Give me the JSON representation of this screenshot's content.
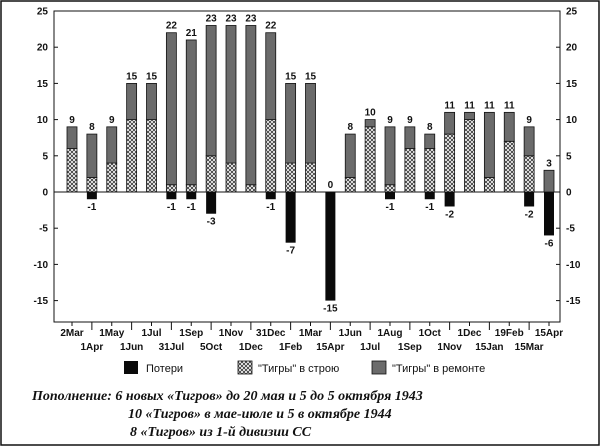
{
  "chart_data": {
    "type": "bar",
    "categories": [
      "2Mar",
      "1Apr",
      "1May",
      "1Jun",
      "1Jul",
      "31Jul",
      "1Sep",
      "5Oct",
      "1Nov",
      "1Dec",
      "31Dec",
      "1Feb",
      "1Mar",
      "15Apr",
      "1Jun",
      "1Jul",
      "1Aug",
      "1Sep",
      "1Oct",
      "1Nov",
      "1Dec",
      "15Jan",
      "19Feb",
      "15Mar",
      "15Apr"
    ],
    "x_tick_labels_top_row": [
      "2Mar",
      "1May",
      "1Jul",
      "1Sep",
      "1Nov",
      "31Dec",
      "1Mar",
      "1Jun",
      "1Aug",
      "1Oct",
      "1Dec",
      "19Feb",
      "15Apr"
    ],
    "x_tick_labels_bottom_row": [
      "1Apr",
      "1Jun",
      "31Jul",
      "5Oct",
      "1Dec",
      "1Feb",
      "15Apr",
      "1Jul",
      "1Sep",
      "1Nov",
      "15Jan",
      "15Mar"
    ],
    "series": [
      {
        "name": "Потери",
        "values": [
          0,
          -1,
          0,
          0,
          0,
          -1,
          -1,
          -3,
          0,
          0,
          -1,
          -7,
          0,
          -15,
          0,
          0,
          -1,
          0,
          -1,
          -2,
          0,
          0,
          0,
          -2,
          -6
        ]
      },
      {
        "name": "\"Тигры\" в строю",
        "values": [
          6,
          2,
          4,
          10,
          10,
          1,
          1,
          5,
          4,
          1,
          10,
          4,
          4,
          0,
          2,
          9,
          1,
          6,
          6,
          8,
          10,
          2,
          7,
          5,
          0
        ]
      },
      {
        "name": "\"Тигры\" в ремонте",
        "values": [
          3,
          6,
          5,
          5,
          5,
          21,
          20,
          18,
          19,
          22,
          12,
          11,
          11,
          0,
          6,
          1,
          8,
          3,
          2,
          3,
          1,
          9,
          4,
          4,
          3
        ]
      }
    ],
    "total_labels": [
      "9",
      "8",
      "9",
      "15",
      "15",
      "22",
      "21",
      "23",
      "23",
      "23",
      "22",
      "15",
      "15",
      "0",
      "8",
      "10",
      "9",
      "9",
      "8",
      "11",
      "11",
      "11",
      "11",
      "9",
      "3"
    ],
    "loss_labels": [
      "",
      "-1",
      "",
      "",
      "",
      "-1",
      "-1",
      "-3",
      "",
      "",
      "-1",
      "-7",
      "",
      "-15",
      "",
      "",
      "-1",
      "",
      "-1",
      "-2",
      "",
      "",
      "",
      "-2",
      "-6"
    ],
    "ylim": [
      -18,
      25
    ],
    "y_ticks": [
      "25",
      "20",
      "15",
      "10",
      "5",
      "0",
      "-5",
      "-10",
      "-15"
    ],
    "title": "",
    "xlabel": "",
    "ylabel": "",
    "legend_position": "bottom",
    "grid": false
  },
  "legend": {
    "items": [
      {
        "label": "Потери",
        "style": "solid-black"
      },
      {
        "label": "\"Тигры\" в строю",
        "style": "crosshatch"
      },
      {
        "label": "\"Тигры\" в ремонте",
        "style": "dark-gray"
      }
    ]
  },
  "caption": {
    "line1": "Пополнение: 6 новых «Тигров» до 20 мая и 5 до 5 октября 1943",
    "line2": "10 «Тигров» в мае-июле и 5 в октябре 1944",
    "line3": "8 «Тигров» из 1-й дивизии СС"
  },
  "colors": {
    "loss": "#0a0a0a",
    "repair": "#6b6b6b",
    "hatch": "#333333",
    "background": "#ffffff"
  }
}
